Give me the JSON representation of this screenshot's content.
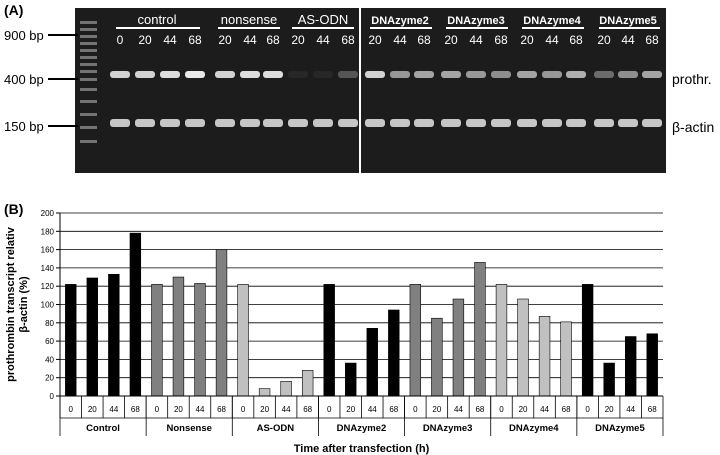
{
  "panel_a": {
    "label": "(A)",
    "group_labels": [
      "control",
      "nonsense",
      "AS-ODN",
      "DNAzyme2",
      "DNAzyme3",
      "DNAzyme4",
      "DNAzyme5"
    ],
    "lane_labels": [
      "0",
      "20",
      "44",
      "68",
      "20",
      "44",
      "68",
      "20",
      "44",
      "68",
      "20",
      "44",
      "68",
      "20",
      "44",
      "68",
      "20",
      "44",
      "68",
      "20",
      "44",
      "68"
    ],
    "size_markers": [
      "900 bp",
      "400 bp",
      "150 bp"
    ],
    "band_labels": [
      "prothr.",
      "β-actin"
    ],
    "prothrombin_intensity": [
      0.8,
      0.8,
      0.85,
      0.9,
      0.8,
      0.85,
      0.85,
      0.05,
      0.05,
      0.25,
      0.8,
      0.55,
      0.6,
      0.6,
      0.55,
      0.5,
      0.6,
      0.55,
      0.65,
      0.35,
      0.5,
      0.6
    ],
    "gel_bg": "#1c1c1c"
  },
  "panel_b": {
    "label": "(B)",
    "chart_data": {
      "type": "bar",
      "ylabel": "prothrombin transcript relativ β-actin (%)",
      "xlabel": "Time after transfection (h)",
      "ylim": [
        0,
        200
      ],
      "yticks": [
        0,
        20,
        40,
        60,
        80,
        100,
        120,
        140,
        160,
        180,
        200
      ],
      "grid": true,
      "groups": [
        {
          "name": "Control",
          "color": "#000000",
          "x": [
            "0",
            "20",
            "44",
            "68"
          ],
          "values": [
            122,
            129,
            133,
            178
          ]
        },
        {
          "name": "Nonsense",
          "color": "#808080",
          "x": [
            "0",
            "20",
            "44",
            "68"
          ],
          "values": [
            122,
            130,
            123,
            160
          ]
        },
        {
          "name": "AS-ODN",
          "color": "#c0c0c0",
          "x": [
            "0",
            "20",
            "44",
            "68"
          ],
          "values": [
            122,
            8,
            16,
            28
          ]
        },
        {
          "name": "DNAzyme2",
          "color": "#000000",
          "x": [
            "0",
            "20",
            "44",
            "68"
          ],
          "values": [
            122,
            36,
            74,
            94
          ]
        },
        {
          "name": "DNAzyme3",
          "color": "#808080",
          "x": [
            "0",
            "20",
            "44",
            "68"
          ],
          "values": [
            122,
            85,
            106,
            146
          ]
        },
        {
          "name": "DNAzyme4",
          "color": "#c0c0c0",
          "x": [
            "0",
            "20",
            "44",
            "68"
          ],
          "values": [
            122,
            106,
            87,
            81
          ]
        },
        {
          "name": "DNAzyme5",
          "color": "#000000",
          "x": [
            "0",
            "20",
            "44",
            "68"
          ],
          "values": [
            122,
            36,
            65,
            68
          ]
        }
      ]
    }
  }
}
